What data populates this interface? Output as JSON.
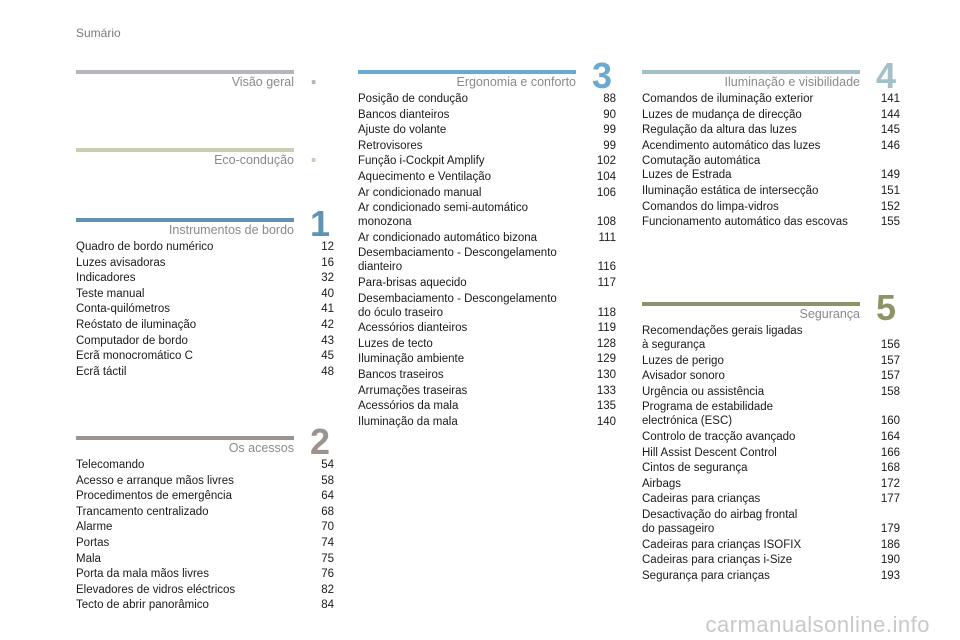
{
  "header": "Sumário",
  "sections": [
    {
      "id": "visao-geral",
      "title": "Visão geral",
      "number": ".",
      "color": "#b9b3bd",
      "entries": []
    },
    {
      "id": "eco-conducao",
      "title": "Eco-condução",
      "number": ".",
      "color": "#c9cdb2",
      "entries": []
    },
    {
      "id": "instrumentos",
      "title": "Instrumentos de bordo",
      "number": "1",
      "color": "#5f93b4",
      "entries": [
        {
          "label": "Quadro de bordo numérico",
          "page": "12"
        },
        {
          "label": "Luzes avisadoras",
          "page": "16"
        },
        {
          "label": "Indicadores",
          "page": "32"
        },
        {
          "label": "Teste manual",
          "page": "40"
        },
        {
          "label": "Conta-quilómetros",
          "page": "41"
        },
        {
          "label": "Reóstato de iluminação",
          "page": "42"
        },
        {
          "label": "Computador de bordo",
          "page": "43"
        },
        {
          "label": "Ecrã monocromático C",
          "page": "45"
        },
        {
          "label": "Ecrã táctil",
          "page": "48"
        }
      ]
    },
    {
      "id": "acessos",
      "title": "Os acessos",
      "number": "2",
      "color": "#9c928e",
      "entries": [
        {
          "label": "Telecomando",
          "page": "54"
        },
        {
          "label": "Acesso e arranque mãos livres",
          "page": "58"
        },
        {
          "label": "Procedimentos de emergência",
          "page": "64"
        },
        {
          "label": "Trancamento centralizado",
          "page": "68"
        },
        {
          "label": "Alarme",
          "page": "70"
        },
        {
          "label": "Portas",
          "page": "74"
        },
        {
          "label": "Mala",
          "page": "75"
        },
        {
          "label": "Porta da mala mãos livres",
          "page": "76"
        },
        {
          "label": "Elevadores de vidros eléctricos",
          "page": "82"
        },
        {
          "label": "Tecto de abrir panorâmico",
          "page": "84"
        }
      ]
    },
    {
      "id": "ergonomia",
      "title": "Ergonomia e conforto",
      "number": "3",
      "color": "#6aaad0",
      "entries": [
        {
          "label": "Posição de condução",
          "page": "88"
        },
        {
          "label": "Bancos dianteiros",
          "page": "90"
        },
        {
          "label": "Ajuste do volante",
          "page": "99"
        },
        {
          "label": "Retrovisores",
          "page": "99"
        },
        {
          "label": "Função i-Cockpit Amplify",
          "page": "102"
        },
        {
          "label": "Aquecimento e Ventilação",
          "page": "104"
        },
        {
          "label": "Ar condicionado manual",
          "page": "106"
        },
        {
          "label": "Ar condicionado semi-automático\n   monozona",
          "page": "108"
        },
        {
          "label": "Ar condicionado automático bizona",
          "page": "111"
        },
        {
          "label": "Desembaciamento - Descongelamento\n   dianteiro",
          "page": "116"
        },
        {
          "label": "Para-brisas aquecido",
          "page": "117"
        },
        {
          "label": "Desembaciamento - Descongelamento\n   do óculo traseiro",
          "page": "118"
        },
        {
          "label": "Acessórios dianteiros",
          "page": "119"
        },
        {
          "label": "Luzes de tecto",
          "page": "128"
        },
        {
          "label": "Iluminação ambiente",
          "page": "129"
        },
        {
          "label": "Bancos traseiros",
          "page": "130"
        },
        {
          "label": "Arrumações traseiras",
          "page": "133"
        },
        {
          "label": "Acessórios da mala",
          "page": "135"
        },
        {
          "label": "Iluminação da mala",
          "page": "140"
        }
      ]
    },
    {
      "id": "iluminacao",
      "title": "Iluminação e visibilidade",
      "number": "4",
      "color": "#a3bfc8",
      "entries": [
        {
          "label": "Comandos de iluminação exterior",
          "page": "141"
        },
        {
          "label": "Luzes de mudança de direcção",
          "page": "144"
        },
        {
          "label": "Regulação da altura das luzes",
          "page": "145"
        },
        {
          "label": "Acendimento automático das luzes",
          "page": "146"
        },
        {
          "label": "Comutação automática\n   Luzes de Estrada",
          "page": "149"
        },
        {
          "label": "Iluminação estática de intersecção",
          "page": "151"
        },
        {
          "label": "Comandos do limpa-vidros",
          "page": "152"
        },
        {
          "label": "Funcionamento automático das escovas",
          "page": "155"
        }
      ]
    },
    {
      "id": "seguranca",
      "title": "Segurança",
      "number": "5",
      "color": "#8f9467",
      "entries": [
        {
          "label": "Recomendações gerais ligadas\n   à segurança",
          "page": "156"
        },
        {
          "label": "Luzes de perigo",
          "page": "157"
        },
        {
          "label": "Avisador sonoro",
          "page": "157"
        },
        {
          "label": "Urgência ou assistência",
          "page": "158"
        },
        {
          "label": "Programa de estabilidade\n   electrónica (ESC)",
          "page": "160"
        },
        {
          "label": "Controlo de tracção avançado",
          "page": "164"
        },
        {
          "label": "Hill Assist Descent Control",
          "page": "166"
        },
        {
          "label": "Cintos de segurança",
          "page": "168"
        },
        {
          "label": "Airbags",
          "page": "172"
        },
        {
          "label": "Cadeiras para crianças",
          "page": "177"
        },
        {
          "label": "Desactivação do airbag frontal\n   do passageiro",
          "page": "179"
        },
        {
          "label": "Cadeiras para crianças ISOFIX",
          "page": "186"
        },
        {
          "label": "Cadeiras para crianças i-Size",
          "page": "190"
        },
        {
          "label": "Segurança para crianças",
          "page": "193"
        }
      ]
    }
  ],
  "watermark": "carmanualsonline.info"
}
